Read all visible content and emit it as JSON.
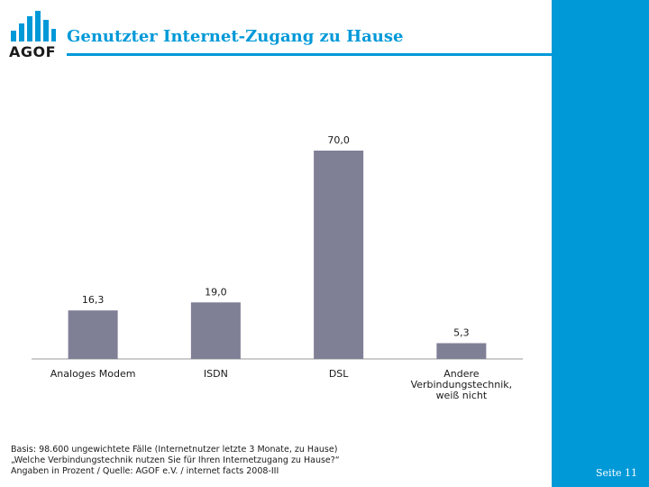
{
  "header": {
    "logo_text": "AGOF",
    "title": "Genutzter Internet-Zugang zu Hause"
  },
  "footnote": {
    "lines": [
      "Basis: 98.600 ungewichtete Fälle (Internetnutzer letzte 3 Monate, zu Hause)",
      "„Welche Verbindungstechnik nutzen Sie für Ihren Internetzugang zu Hause?“",
      "Angaben in Prozent / Quelle: AGOF e.V. / internet facts 2008-III"
    ]
  },
  "page": {
    "label": "Seite 11"
  },
  "colors": {
    "accent": "#0099d8",
    "bar": "#7f7f96",
    "axis": "#999999",
    "logo_dark": "#1a1a1a"
  },
  "chart_data": {
    "type": "bar",
    "categories": [
      [
        "Analoges Modem"
      ],
      [
        "ISDN"
      ],
      [
        "DSL"
      ],
      [
        "Andere",
        "Verbindungstechnik,",
        "weiß nicht"
      ]
    ],
    "values": [
      16.3,
      19.0,
      70.0,
      5.3
    ],
    "value_labels": [
      "16,3",
      "19,0",
      "70,0",
      "5,3"
    ],
    "ylim": [
      0,
      70
    ],
    "grid": false,
    "legend": "none"
  }
}
